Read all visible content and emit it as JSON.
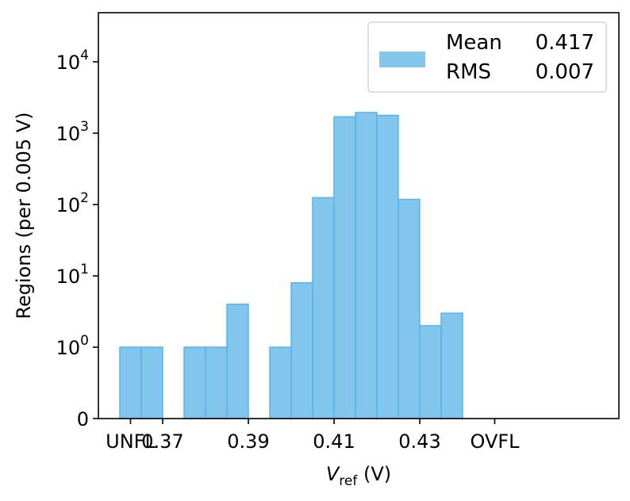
{
  "chart_data": {
    "type": "histogram",
    "y_scale": "log, with an offset so that 0 is shown below 10^0",
    "grid": false,
    "legend_position": "top-right",
    "bar_color": "#82c6ee",
    "edge_color": "#56b4e9",
    "xlabel": {
      "base": "V",
      "sub": "ref",
      "unit": " (V)"
    },
    "ylabel": "Regions (per 0.005 V)",
    "x_ticks": [
      "UNFL",
      "0.37",
      "0.39",
      "0.41",
      "0.43",
      "OVFL"
    ],
    "y_ticks": [
      {
        "value": 0,
        "base": "0",
        "exp": ""
      },
      {
        "value": 1,
        "base": "10",
        "exp": "0"
      },
      {
        "value": 10,
        "base": "10",
        "exp": "1"
      },
      {
        "value": 100,
        "base": "10",
        "exp": "2"
      },
      {
        "value": 1000,
        "base": "10",
        "exp": "3"
      },
      {
        "value": 10000,
        "base": "10",
        "exp": "4"
      }
    ],
    "bins": [
      {
        "x0": "UNFL",
        "x1": "UNFL",
        "count": 1
      },
      {
        "x0": 0.365,
        "x1": 0.37,
        "count": 1
      },
      {
        "x0": 0.375,
        "x1": 0.38,
        "count": 1
      },
      {
        "x0": 0.38,
        "x1": 0.385,
        "count": 1
      },
      {
        "x0": 0.385,
        "x1": 0.39,
        "count": 4
      },
      {
        "x0": 0.395,
        "x1": 0.4,
        "count": 1
      },
      {
        "x0": 0.4,
        "x1": 0.405,
        "count": 8
      },
      {
        "x0": 0.405,
        "x1": 0.41,
        "count": 125
      },
      {
        "x0": 0.41,
        "x1": 0.415,
        "count": 1700
      },
      {
        "x0": 0.415,
        "x1": 0.42,
        "count": 1950
      },
      {
        "x0": 0.42,
        "x1": 0.425,
        "count": 1780
      },
      {
        "x0": 0.425,
        "x1": 0.43,
        "count": 118
      },
      {
        "x0": 0.43,
        "x1": 0.435,
        "count": 2
      },
      {
        "x0": 0.435,
        "x1": 0.44,
        "count": 3
      }
    ],
    "legend": {
      "rows": [
        {
          "label": "Mean",
          "value": "0.417"
        },
        {
          "label": "RMS",
          "value": "0.007"
        }
      ]
    }
  }
}
